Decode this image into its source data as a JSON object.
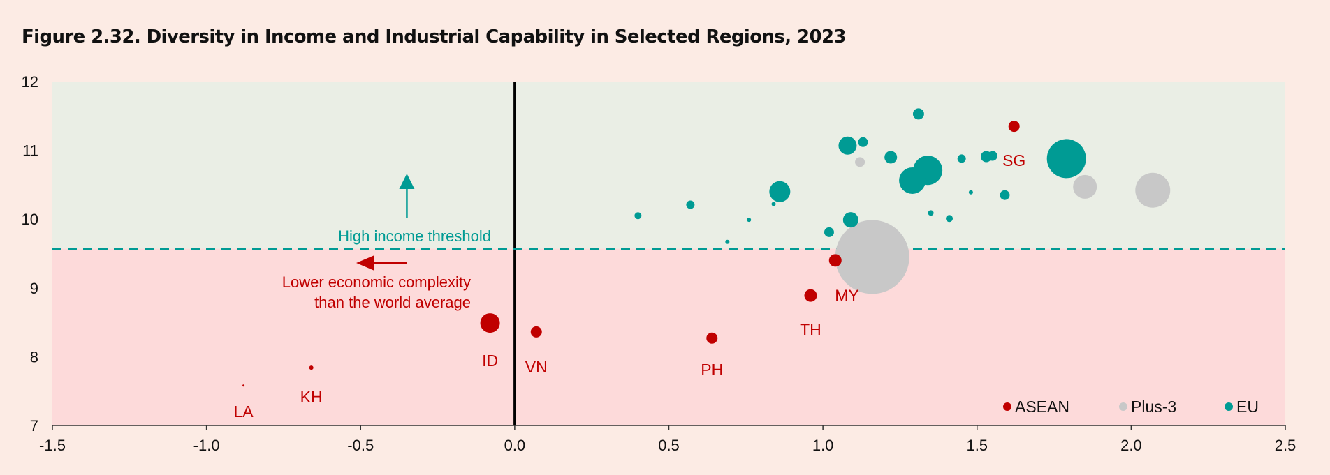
{
  "chart_data": {
    "type": "scatter",
    "title": "Figure 2.32. Diversity in Income and Industrial Capability in Selected Regions, 2023",
    "xlim": [
      -1.5,
      2.5
    ],
    "ylim": [
      7,
      12
    ],
    "x_ticks": [
      "-1.5",
      "-1.0",
      "-0.5",
      "0.0",
      "0.5",
      "1.0",
      "1.5",
      "2.0",
      "2.5"
    ],
    "y_ticks": [
      "7",
      "8",
      "9",
      "10",
      "11",
      "12"
    ],
    "high_income_threshold": 9.57,
    "colors": {
      "ASEAN": "#c00000",
      "Plus-3": "#c8c8c8",
      "EU": "#009b94",
      "upper_band": "#eaeee5",
      "lower_band": "#fddada",
      "background": "#fcebe4"
    },
    "annotations": {
      "threshold_label": "High income threshold",
      "complexity_line1": "Lower economic complexity",
      "complexity_line2": "than the world average"
    },
    "legend": {
      "position": "bottom-right",
      "items": [
        "ASEAN",
        "Plus-3",
        "EU"
      ]
    },
    "series": [
      {
        "name": "EU",
        "points": [
          {
            "x": 0.4,
            "y": 10.05,
            "size": 5
          },
          {
            "x": 0.57,
            "y": 10.21,
            "size": 6
          },
          {
            "x": 0.69,
            "y": 9.67,
            "size": 3
          },
          {
            "x": 0.76,
            "y": 9.99,
            "size": 3
          },
          {
            "x": 0.84,
            "y": 10.22,
            "size": 3
          },
          {
            "x": 0.86,
            "y": 10.4,
            "size": 15
          },
          {
            "x": 1.02,
            "y": 9.81,
            "size": 7
          },
          {
            "x": 1.08,
            "y": 11.07,
            "size": 13
          },
          {
            "x": 1.09,
            "y": 9.99,
            "size": 11
          },
          {
            "x": 1.13,
            "y": 11.12,
            "size": 7
          },
          {
            "x": 1.22,
            "y": 10.9,
            "size": 9
          },
          {
            "x": 1.29,
            "y": 10.56,
            "size": 19
          },
          {
            "x": 1.31,
            "y": 11.53,
            "size": 8
          },
          {
            "x": 1.34,
            "y": 10.71,
            "size": 21
          },
          {
            "x": 1.35,
            "y": 10.09,
            "size": 4
          },
          {
            "x": 1.41,
            "y": 10.01,
            "size": 5
          },
          {
            "x": 1.45,
            "y": 10.88,
            "size": 6
          },
          {
            "x": 1.48,
            "y": 10.39,
            "size": 3
          },
          {
            "x": 1.53,
            "y": 10.91,
            "size": 8
          },
          {
            "x": 1.55,
            "y": 10.92,
            "size": 7
          },
          {
            "x": 1.59,
            "y": 10.35,
            "size": 7
          },
          {
            "x": 1.79,
            "y": 10.88,
            "size": 28
          }
        ]
      },
      {
        "name": "Plus-3",
        "points": [
          {
            "x": 1.12,
            "y": 10.83,
            "size": 7
          },
          {
            "x": 1.16,
            "y": 9.45,
            "size": 53
          },
          {
            "x": 1.85,
            "y": 10.47,
            "size": 17
          },
          {
            "x": 2.07,
            "y": 10.42,
            "size": 25
          }
        ]
      },
      {
        "name": "ASEAN",
        "points": [
          {
            "x": -0.88,
            "y": 7.58,
            "size": 1.5,
            "label": "LA"
          },
          {
            "x": -0.66,
            "y": 7.84,
            "size": 3,
            "label": "KH"
          },
          {
            "x": -0.08,
            "y": 8.49,
            "size": 14,
            "label": "ID"
          },
          {
            "x": 0.07,
            "y": 8.36,
            "size": 8,
            "label": "VN"
          },
          {
            "x": 0.64,
            "y": 8.27,
            "size": 8,
            "label": "PH"
          },
          {
            "x": 0.96,
            "y": 8.89,
            "size": 9,
            "label": "TH"
          },
          {
            "x": 0.96,
            "y": 8.89,
            "size": 0,
            "label": "MY"
          },
          {
            "x": 1.04,
            "y": 9.4,
            "size": 9
          },
          {
            "x": 1.62,
            "y": 11.35,
            "size": 8,
            "label": "SG"
          }
        ]
      }
    ]
  }
}
